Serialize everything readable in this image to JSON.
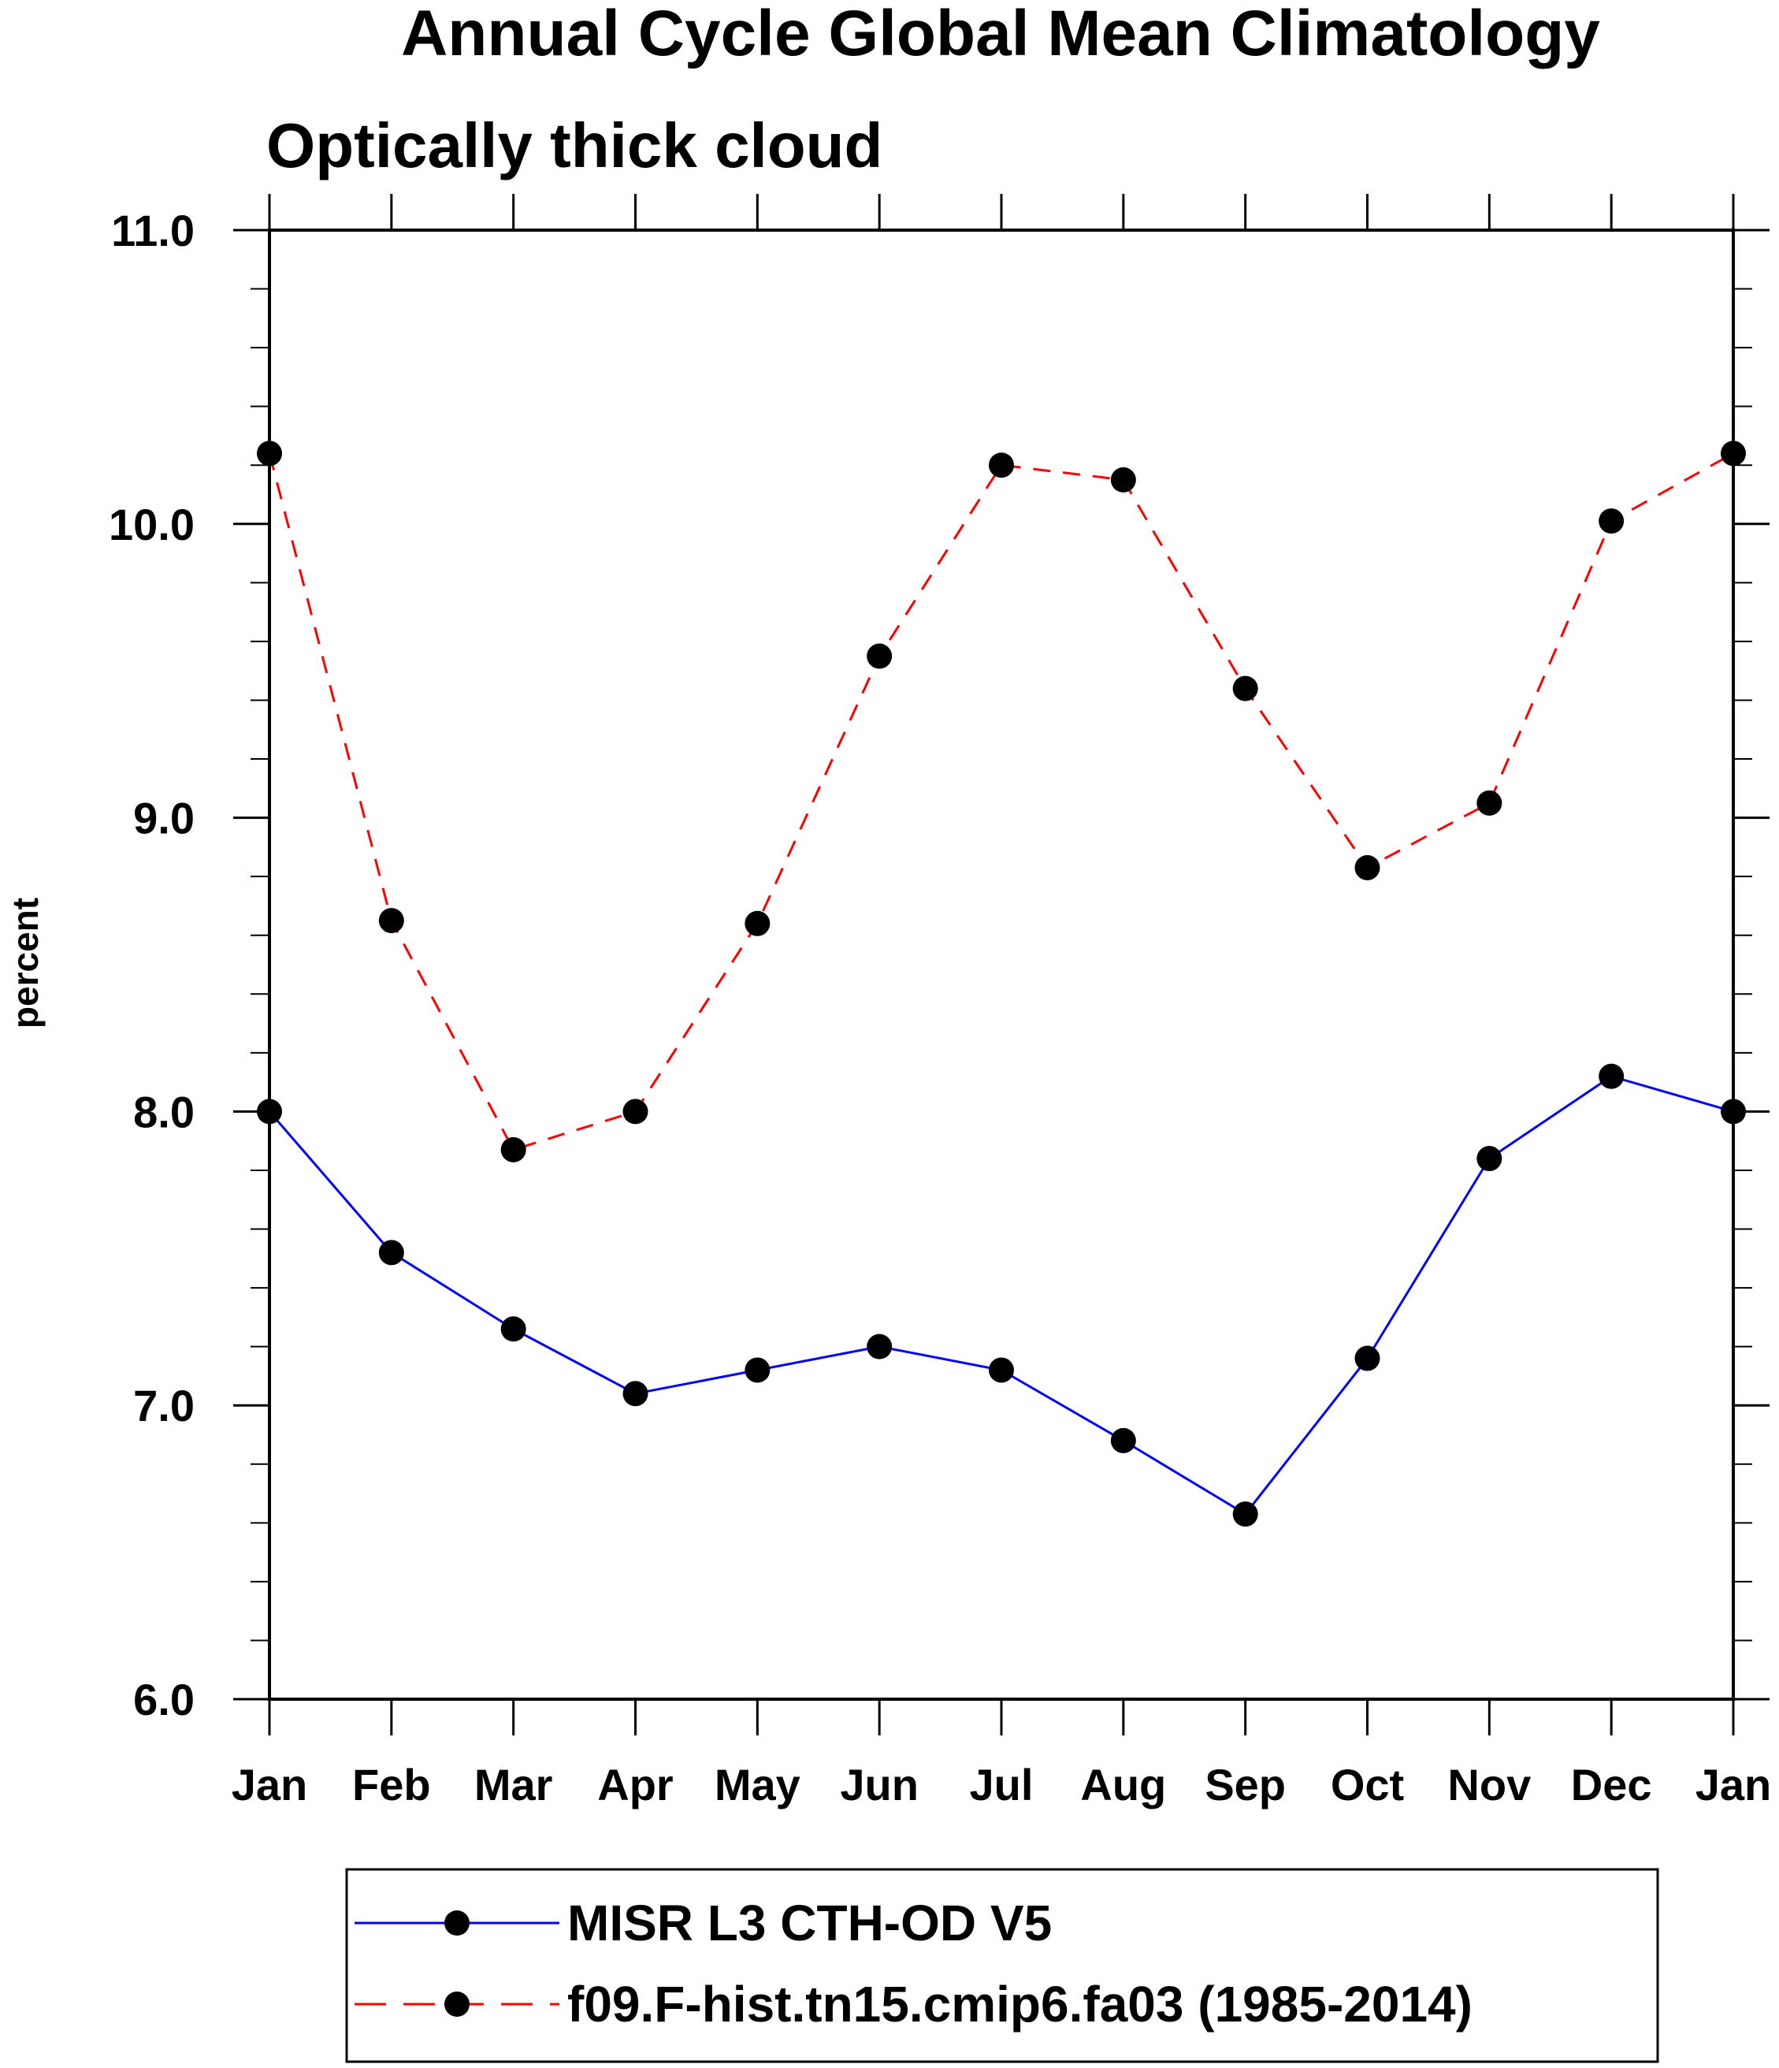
{
  "chart_data": {
    "type": "line",
    "title": "Annual Cycle Global Mean Climatology",
    "subtitle": "Optically thick cloud",
    "xlabel": "",
    "ylabel": "percent",
    "categories": [
      "Jan",
      "Feb",
      "Mar",
      "Apr",
      "May",
      "Jun",
      "Jul",
      "Aug",
      "Sep",
      "Oct",
      "Nov",
      "Dec",
      "Jan"
    ],
    "ylim": [
      6.0,
      11.0
    ],
    "yticks": [
      "6.0",
      "7.0",
      "8.0",
      "9.0",
      "10.0",
      "11.0"
    ],
    "y_minor_step": 0.2,
    "grid": false,
    "legend_position": "bottom",
    "series": [
      {
        "name": "MISR L3 CTH-OD V5",
        "color": "#0000ff",
        "dash": "solid",
        "marker": "filled-circle",
        "values": [
          8.0,
          7.52,
          7.26,
          7.04,
          7.12,
          7.2,
          7.12,
          6.88,
          6.63,
          7.16,
          7.84,
          8.12,
          8.0
        ]
      },
      {
        "name": "f09.F-hist.tn15.cmip6.fa03 (1985-2014)",
        "color": "#ff0000",
        "dash": "dashed",
        "marker": "filled-circle",
        "values": [
          10.24,
          8.65,
          7.87,
          8.0,
          8.64,
          9.55,
          10.2,
          10.15,
          9.44,
          8.83,
          9.05,
          10.01,
          10.24
        ]
      }
    ]
  }
}
